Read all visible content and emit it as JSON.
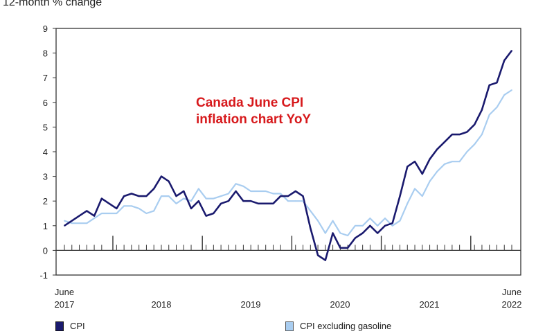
{
  "chart_data": {
    "type": "line",
    "ylabel": "12-month % change",
    "annotation": [
      "Canada June CPI",
      "inflation chart YoY"
    ],
    "ylim": [
      -1,
      9
    ],
    "yticks": [
      "-1",
      "0",
      "1",
      "2",
      "3",
      "4",
      "5",
      "6",
      "7",
      "8",
      "9"
    ],
    "x_tick_labels": [
      {
        "top": "June",
        "bottom": "2017"
      },
      {
        "top": "",
        "bottom": "2018"
      },
      {
        "top": "",
        "bottom": "2019"
      },
      {
        "top": "",
        "bottom": "2020"
      },
      {
        "top": "",
        "bottom": "2021"
      },
      {
        "top": "June",
        "bottom": "2022"
      }
    ],
    "x": [
      "2017-06",
      "2017-07",
      "2017-08",
      "2017-09",
      "2017-10",
      "2017-11",
      "2017-12",
      "2018-01",
      "2018-02",
      "2018-03",
      "2018-04",
      "2018-05",
      "2018-06",
      "2018-07",
      "2018-08",
      "2018-09",
      "2018-10",
      "2018-11",
      "2018-12",
      "2019-01",
      "2019-02",
      "2019-03",
      "2019-04",
      "2019-05",
      "2019-06",
      "2019-07",
      "2019-08",
      "2019-09",
      "2019-10",
      "2019-11",
      "2019-12",
      "2020-01",
      "2020-02",
      "2020-03",
      "2020-04",
      "2020-05",
      "2020-06",
      "2020-07",
      "2020-08",
      "2020-09",
      "2020-10",
      "2020-11",
      "2020-12",
      "2021-01",
      "2021-02",
      "2021-03",
      "2021-04",
      "2021-05",
      "2021-06",
      "2021-07",
      "2021-08",
      "2021-09",
      "2021-10",
      "2021-11",
      "2021-12",
      "2022-01",
      "2022-02",
      "2022-03",
      "2022-04",
      "2022-05",
      "2022-06"
    ],
    "series": [
      {
        "name": "CPI",
        "color": "#1a1a6e",
        "values": [
          1.0,
          1.2,
          1.4,
          1.6,
          1.4,
          2.1,
          1.9,
          1.7,
          2.2,
          2.3,
          2.2,
          2.2,
          2.5,
          3.0,
          2.8,
          2.2,
          2.4,
          1.7,
          2.0,
          1.4,
          1.5,
          1.9,
          2.0,
          2.4,
          2.0,
          2.0,
          1.9,
          1.9,
          1.9,
          2.2,
          2.2,
          2.4,
          2.2,
          0.9,
          -0.2,
          -0.4,
          0.7,
          0.1,
          0.1,
          0.5,
          0.7,
          1.0,
          0.7,
          1.0,
          1.1,
          2.2,
          3.4,
          3.6,
          3.1,
          3.7,
          4.1,
          4.4,
          4.7,
          4.7,
          4.8,
          5.1,
          5.7,
          6.7,
          6.8,
          7.7,
          8.1
        ]
      },
      {
        "name": "CPI excluding gasoline",
        "color": "#a9cdf0",
        "values": [
          1.2,
          1.1,
          1.1,
          1.1,
          1.3,
          1.5,
          1.5,
          1.5,
          1.8,
          1.8,
          1.7,
          1.5,
          1.6,
          2.2,
          2.2,
          1.9,
          2.1,
          2.0,
          2.5,
          2.1,
          2.1,
          2.2,
          2.3,
          2.7,
          2.6,
          2.4,
          2.4,
          2.4,
          2.3,
          2.3,
          2.0,
          2.0,
          2.0,
          1.6,
          1.2,
          0.7,
          1.2,
          0.7,
          0.6,
          1.0,
          1.0,
          1.3,
          1.0,
          1.3,
          1.0,
          1.2,
          1.9,
          2.5,
          2.2,
          2.8,
          3.2,
          3.5,
          3.6,
          3.6,
          4.0,
          4.3,
          4.7,
          5.5,
          5.8,
          6.3,
          6.5
        ]
      }
    ],
    "legend_placement": "bottom",
    "grid": false
  }
}
